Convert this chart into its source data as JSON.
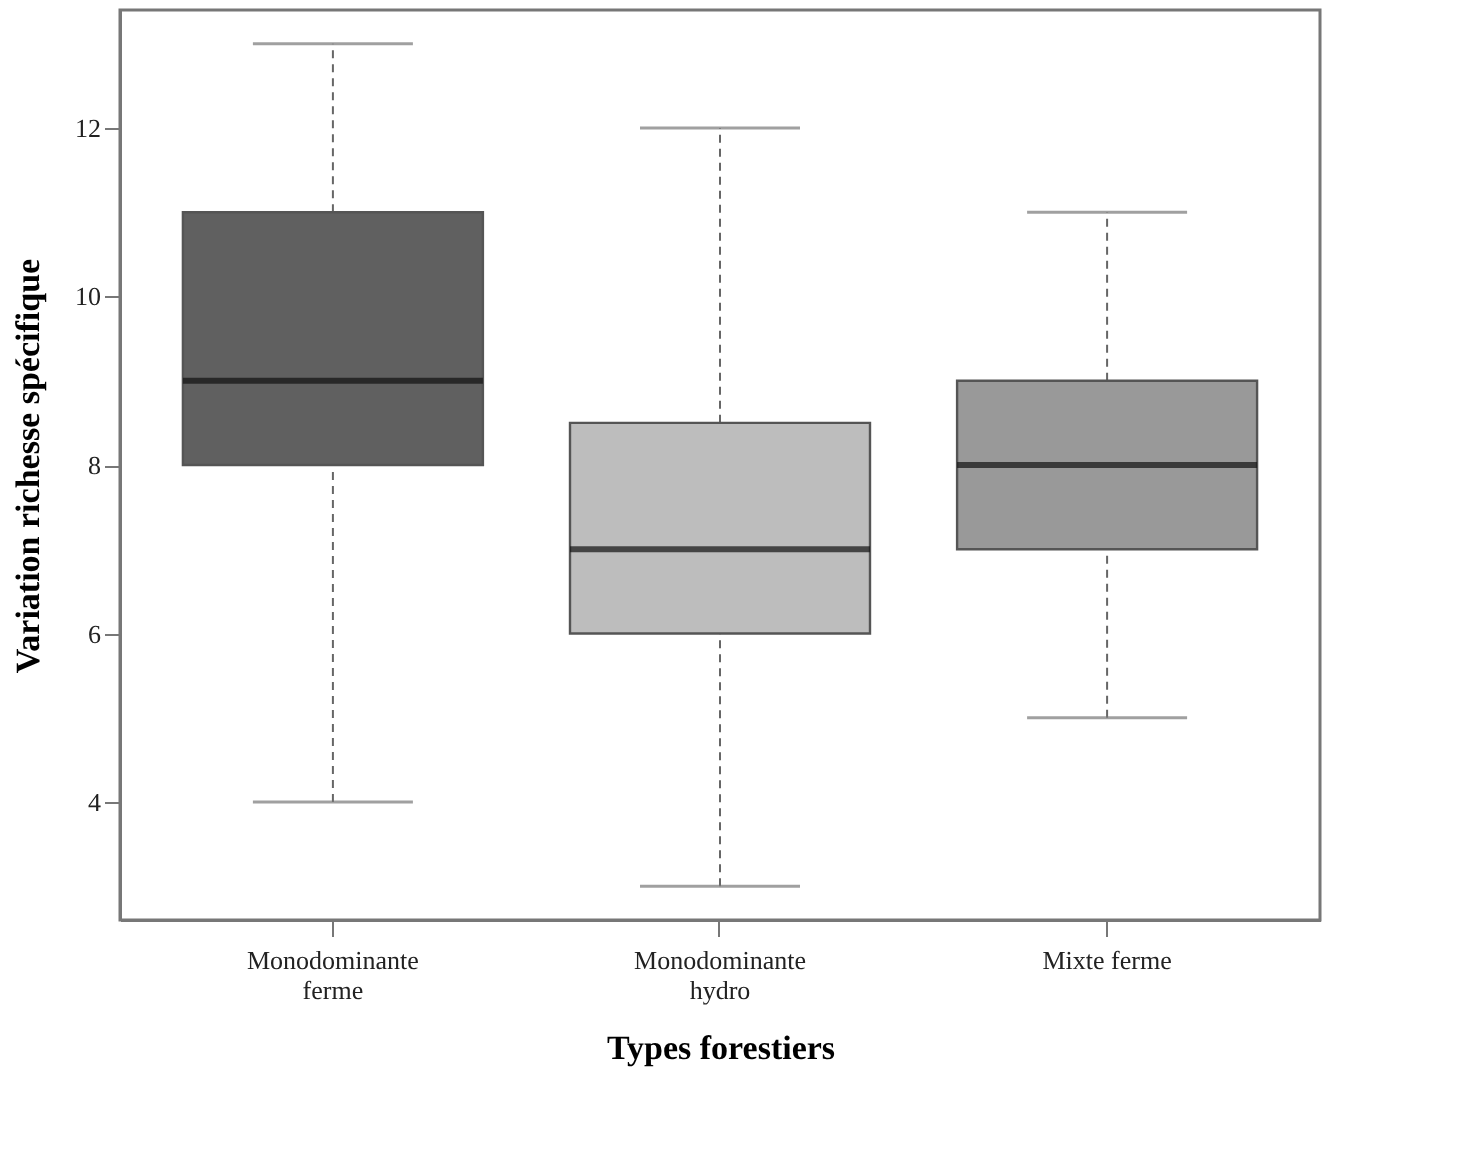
{
  "chart_data": {
    "type": "box",
    "xlabel": "Types forestiers",
    "ylabel": "Variation richesse spécifique",
    "categories": [
      "Monodominante\nferme",
      "Monodominante\nhydro",
      "Mixte ferme"
    ],
    "boxes": [
      {
        "low": 4,
        "q1": 8,
        "median": 9,
        "q3": 11,
        "high": 13
      },
      {
        "low": 3,
        "q1": 6,
        "median": 7,
        "q3": 8.5,
        "high": 12
      },
      {
        "low": 5,
        "q1": 7,
        "median": 8,
        "q3": 9,
        "high": 11
      }
    ],
    "colors": [
      "#606060",
      "#bdbdbd",
      "#999999"
    ],
    "ylim": [
      2.6,
      13.4
    ],
    "yticks": [
      4,
      6,
      8,
      10,
      12
    ],
    "grid": false
  }
}
